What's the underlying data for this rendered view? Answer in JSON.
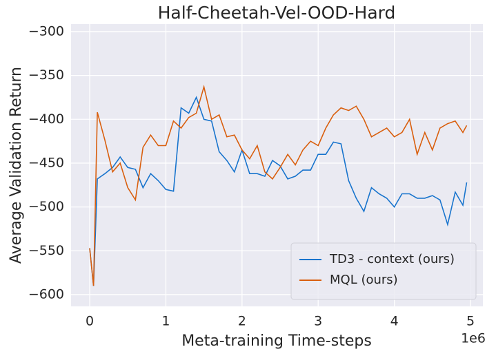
{
  "chart_data": {
    "type": "line",
    "title": "Half-Cheetah-Vel-OOD-Hard",
    "x_label": "Meta-training Time-steps",
    "y_label": "Average Validation Return",
    "x_offset_label": "1e6",
    "x": [
      0,
      0.05,
      0.1,
      0.2,
      0.3,
      0.4,
      0.5,
      0.6,
      0.7,
      0.8,
      0.9,
      1.0,
      1.1,
      1.2,
      1.3,
      1.4,
      1.5,
      1.6,
      1.7,
      1.8,
      1.9,
      2.0,
      2.1,
      2.2,
      2.3,
      2.4,
      2.5,
      2.6,
      2.7,
      2.8,
      2.9,
      3.0,
      3.1,
      3.2,
      3.3,
      3.4,
      3.5,
      3.6,
      3.7,
      3.8,
      3.9,
      4.0,
      4.1,
      4.2,
      4.3,
      4.4,
      4.5,
      4.6,
      4.7,
      4.8,
      4.9,
      4.95
    ],
    "series": [
      {
        "name": "TD3 - context (ours)",
        "color": "#1874cd",
        "values": [
          -547,
          -590,
          -468,
          -462,
          -455,
          -443,
          -455,
          -457,
          -478,
          -462,
          -470,
          -480,
          -482,
          -387,
          -393,
          -375,
          -400,
          -402,
          -437,
          -447,
          -460,
          -435,
          -462,
          -462,
          -465,
          -447,
          -453,
          -468,
          -465,
          -458,
          -458,
          -440,
          -440,
          -426,
          -428,
          -470,
          -490,
          -505,
          -478,
          -485,
          -490,
          -500,
          -485,
          -485,
          -490,
          -490,
          -487,
          -492,
          -520,
          -483,
          -498,
          -472
        ]
      },
      {
        "name": "MQL (ours)",
        "color": "#d95f0e",
        "values": [
          -547,
          -590,
          -392,
          -424,
          -460,
          -450,
          -478,
          -492,
          -432,
          -418,
          -430,
          -430,
          -402,
          -410,
          -398,
          -393,
          -363,
          -400,
          -395,
          -420,
          -418,
          -435,
          -445,
          -430,
          -460,
          -468,
          -455,
          -440,
          -452,
          -435,
          -425,
          -430,
          -410,
          -395,
          -387,
          -390,
          -385,
          -400,
          -420,
          -415,
          -410,
          -420,
          -415,
          -400,
          -440,
          -415,
          -435,
          -410,
          -405,
          -402,
          -415,
          -407
        ]
      }
    ],
    "xlim": [
      -0.245,
      5.163
    ],
    "ylim": [
      -613.4,
      -291.4
    ],
    "xticks": [
      0,
      1,
      2,
      3,
      4,
      5
    ],
    "yticks": [
      {
        "value": -600,
        "label": "−600"
      },
      {
        "value": -550,
        "label": "−550"
      },
      {
        "value": -500,
        "label": "−500"
      },
      {
        "value": -450,
        "label": "−450"
      },
      {
        "value": -400,
        "label": "−400"
      },
      {
        "value": -350,
        "label": "−350"
      },
      {
        "value": -300,
        "label": "−300"
      }
    ],
    "grid": true,
    "legend": "lower right"
  }
}
